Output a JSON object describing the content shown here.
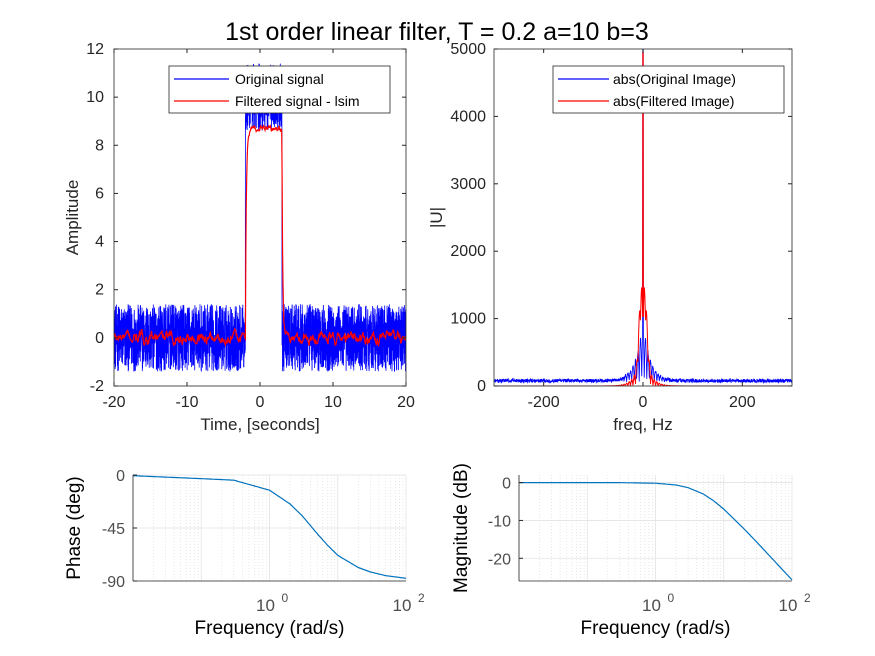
{
  "figure_title": "1st order linear filter, T = 0.2 a=10 b=3",
  "chart_data": [
    {
      "type": "line",
      "xlabel": "Time, [seconds]",
      "ylabel": "Amplitude",
      "xlim": [
        -20,
        20
      ],
      "ylim": [
        -2,
        12
      ],
      "xticks": [
        -20,
        -10,
        0,
        10,
        20
      ],
      "yticks": [
        -2,
        0,
        2,
        4,
        6,
        8,
        10,
        12
      ],
      "xtick_labels": [
        "-20",
        "-10",
        "0",
        "10",
        "20"
      ],
      "ytick_labels": [
        "-2",
        "0",
        "2",
        "4",
        "6",
        "8",
        "10",
        "12"
      ],
      "legend_position": "top-right",
      "series": [
        {
          "name": "Original signal",
          "color": "#0000ff",
          "shape": "noisy-pulse",
          "x_start": -20,
          "x_end": 20,
          "pulse_start": -2,
          "pulse_end": 3,
          "level_low": 0,
          "level_high": 10,
          "noise_amplitude": 1.4
        },
        {
          "name": "Filtered signal - lsim",
          "color": "#ff0000",
          "shape": "smoothed-pulse",
          "x_start": -20,
          "x_end": 20,
          "pulse_start": -2,
          "pulse_end": 3,
          "level_low": 0,
          "level_high": 8.7,
          "noise_amplitude": 0.3
        }
      ]
    },
    {
      "type": "line",
      "xlabel": "freq, Hz",
      "ylabel": "|U|",
      "xlim": [
        -300,
        300
      ],
      "ylim": [
        0,
        5000
      ],
      "xticks": [
        -200,
        0,
        200
      ],
      "yticks": [
        0,
        1000,
        2000,
        3000,
        4000,
        5000
      ],
      "xtick_labels": [
        "-200",
        "0",
        "200"
      ],
      "ytick_labels": [
        "0",
        "1000",
        "2000",
        "3000",
        "4000",
        "5000"
      ],
      "legend_position": "top-right",
      "series": [
        {
          "name": "abs(Original Image)",
          "color": "#0000ff",
          "peak": 5000,
          "floor": 50
        },
        {
          "name": "abs(Filtered Image)",
          "color": "#ff0000",
          "peak": 4950,
          "side_lobe_peak": 1030
        }
      ]
    },
    {
      "type": "line",
      "xlabel": "Frequency  (rad/s)",
      "ylabel": "Phase (deg)",
      "xscale": "log",
      "xlim": [
        0.01,
        100
      ],
      "ylim": [
        -90,
        0
      ],
      "xticks": [
        1,
        100
      ],
      "yticks": [
        0,
        -45,
        -90
      ],
      "ytick_labels": [
        "0",
        "-45",
        "-90"
      ],
      "series": [
        {
          "color": "#0072bd",
          "x": [
            0.01,
            0.1,
            0.3,
            1,
            2,
            3,
            5,
            7,
            10,
            20,
            30,
            50,
            100
          ],
          "y": [
            -0.6,
            -3.1,
            -4.4,
            -12.9,
            -24.6,
            -34.5,
            -49.8,
            -59.3,
            -68.2,
            -78.6,
            -82.3,
            -85.4,
            -87.7
          ]
        }
      ]
    },
    {
      "type": "line",
      "xlabel": "Frequency  (rad/s)",
      "ylabel": "Magnitude (dB)",
      "xscale": "log",
      "xlim": [
        0.01,
        100
      ],
      "ylim": [
        -26,
        2
      ],
      "xticks": [
        1,
        100
      ],
      "yticks": [
        0,
        -10,
        -20
      ],
      "ytick_labels": [
        "0",
        "-10",
        "-20"
      ],
      "series": [
        {
          "color": "#0072bd",
          "x": [
            0.01,
            0.1,
            0.3,
            1,
            2,
            3,
            5,
            7,
            10,
            20,
            30,
            50,
            100
          ],
          "y": [
            0,
            0,
            -0.02,
            -0.17,
            -0.64,
            -1.34,
            -3.0,
            -4.73,
            -7.0,
            -12.3,
            -15.6,
            -19.9,
            -25.7
          ]
        }
      ]
    }
  ]
}
